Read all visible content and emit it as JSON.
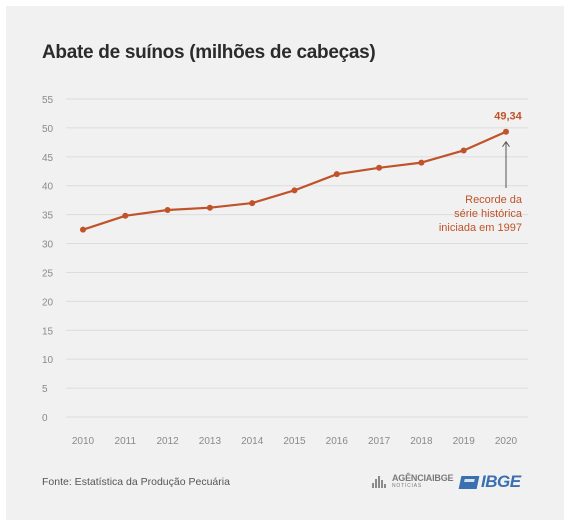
{
  "chart_data": {
    "type": "line",
    "title": "Abate de suínos (milhões de cabeças)",
    "x": [
      "2010",
      "2011",
      "2012",
      "2013",
      "2014",
      "2015",
      "2016",
      "2017",
      "2018",
      "2019",
      "2020"
    ],
    "series": [
      {
        "values": [
          32.4,
          34.8,
          35.8,
          36.2,
          37.0,
          39.2,
          42.0,
          43.1,
          44.0,
          46.1,
          49.34
        ]
      }
    ],
    "yticks": [
      "0",
      "5",
      "10",
      "15",
      "20",
      "25",
      "30",
      "35",
      "40",
      "45",
      "50",
      "55"
    ],
    "ylim": [
      0,
      55
    ],
    "grid": true,
    "last_value_label": "49,34",
    "annotation": {
      "lines": [
        "Recorde da",
        "série histórica",
        "iniciada em 1997"
      ]
    },
    "line_color": "#c0532a"
  },
  "footer": {
    "source": "Fonte: Estatística da Produção Pecuária",
    "agencia_main": "AGÊNCIAIBGE",
    "agencia_sub": "NOTÍCIAS",
    "ibge_logo": "IBGE"
  }
}
